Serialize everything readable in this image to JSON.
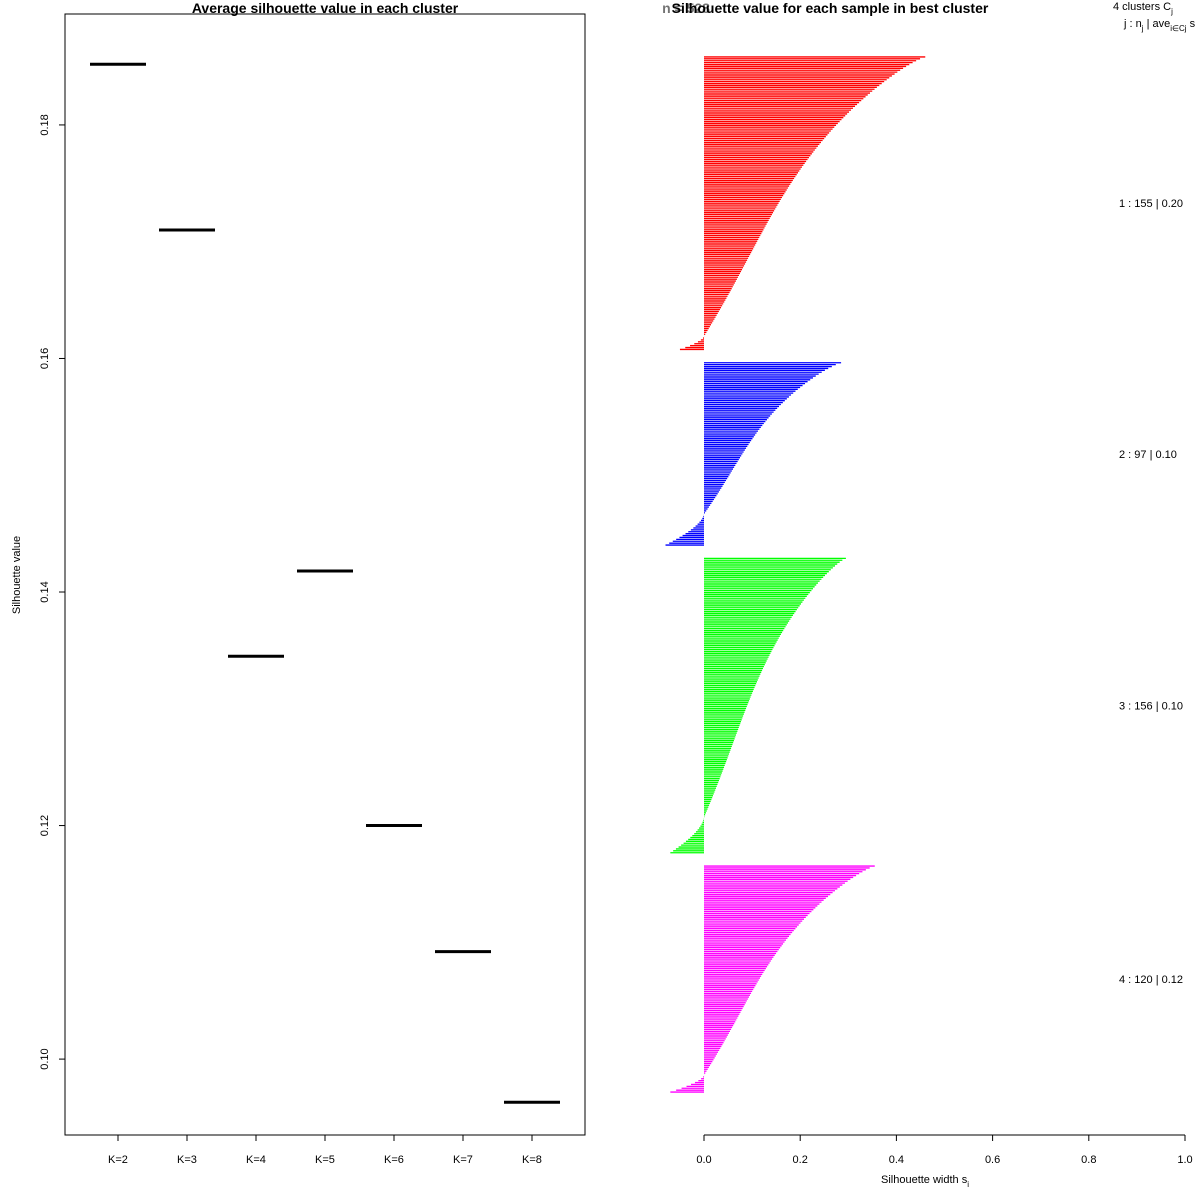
{
  "chart_data": [
    {
      "type": "scatter",
      "marker": "horizontal-segment",
      "title": "Average silhouette value in each cluster",
      "xlabel": "",
      "ylabel": "Silhouette value",
      "categories": [
        "K=2",
        "K=3",
        "K=4",
        "K=5",
        "K=6",
        "K=7",
        "K=8"
      ],
      "values": [
        0.1852,
        0.171,
        0.1345,
        0.1418,
        0.12,
        0.1092,
        0.0963
      ],
      "yticks": [
        0.1,
        0.12,
        0.14,
        0.16,
        0.18
      ],
      "ytick_labels": [
        "0.10",
        "0.12",
        "0.14",
        "0.16",
        "0.18"
      ],
      "ylim": [
        0.0935,
        0.1895
      ],
      "grid": false
    },
    {
      "type": "bar",
      "orientation": "horizontal",
      "title": "Silhouette value for each sample in best cluster",
      "overprinted_title_fragment": "n = 528",
      "xlabel": "Silhouette width s",
      "xlabel_subscript": "i",
      "xlim": [
        0,
        1
      ],
      "xticks": [
        0.0,
        0.2,
        0.4,
        0.6,
        0.8,
        1.0
      ],
      "xtick_labels": [
        "0.0",
        "0.2",
        "0.4",
        "0.6",
        "0.8",
        "1.0"
      ],
      "legend_header": {
        "line1": "4  clusters  C",
        "line1_sub": "j",
        "line2": "j :  n",
        "line2_sub": "j",
        "line2_rest": " | ave",
        "line2_sub2": "i∈Cj",
        "line2_tail": "  s"
      },
      "clusters": [
        {
          "id": 1,
          "n": 155,
          "label": "1 :  155  |  0.20",
          "color": "#ff0000",
          "max": 0.46,
          "zero_at": 0.955,
          "min_neg": -0.05
        },
        {
          "id": 2,
          "n": 97,
          "label": "2 :  97  |  0.10",
          "color": "#0000ff",
          "max": 0.285,
          "zero_at": 0.83,
          "min_neg": -0.08
        },
        {
          "id": 3,
          "n": 156,
          "label": "3 :  156  |  0.10",
          "color": "#00ff00",
          "max": 0.295,
          "zero_at": 0.88,
          "min_neg": -0.07
        },
        {
          "id": 4,
          "n": 120,
          "label": "4 :  120  |  0.12",
          "color": "#ff00ff",
          "max": 0.355,
          "zero_at": 0.925,
          "min_neg": -0.07
        }
      ]
    }
  ]
}
